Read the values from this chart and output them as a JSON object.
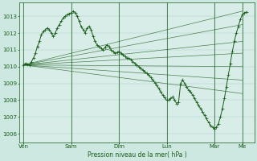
{
  "xlabel": "Pression niveau de la mer( hPa )",
  "bg_color": "#cce8e0",
  "grid_color": "#aacfc8",
  "line_color": "#1a5c1a",
  "plot_bg": "#d8ede8",
  "ylim": [
    1005.5,
    1013.8
  ],
  "yticks": [
    1006,
    1007,
    1008,
    1009,
    1010,
    1011,
    1012,
    1013
  ],
  "x_day_labels": [
    "Ven",
    "Sam",
    "Dim",
    "Lun",
    "Mar",
    "Me"
  ],
  "x_day_positions": [
    0,
    24,
    48,
    72,
    96,
    110
  ],
  "xlim": [
    -2,
    116
  ],
  "series": [
    {
      "points": [
        [
          0,
          1010.1
        ],
        [
          110,
          1013.3
        ]
      ]
    },
    {
      "points": [
        [
          0,
          1010.1
        ],
        [
          110,
          1012.5
        ]
      ]
    },
    {
      "points": [
        [
          0,
          1010.1
        ],
        [
          110,
          1011.5
        ]
      ]
    },
    {
      "points": [
        [
          0,
          1010.1
        ],
        [
          110,
          1010.8
        ]
      ]
    },
    {
      "points": [
        [
          0,
          1010.1
        ],
        [
          110,
          1010.0
        ]
      ]
    },
    {
      "points": [
        [
          0,
          1010.1
        ],
        [
          110,
          1009.2
        ]
      ]
    },
    {
      "points": [
        [
          0,
          1010.1
        ],
        [
          110,
          1008.4
        ]
      ]
    }
  ],
  "main_curve": [
    [
      0,
      1010.1
    ],
    [
      1,
      1010.2
    ],
    [
      2,
      1010.15
    ],
    [
      3,
      1010.1
    ],
    [
      4,
      1010.3
    ],
    [
      5,
      1010.5
    ],
    [
      6,
      1010.8
    ],
    [
      7,
      1011.2
    ],
    [
      8,
      1011.5
    ],
    [
      9,
      1011.9
    ],
    [
      10,
      1012.1
    ],
    [
      11,
      1012.2
    ],
    [
      12,
      1012.3
    ],
    [
      13,
      1012.2
    ],
    [
      14,
      1012.0
    ],
    [
      15,
      1011.8
    ],
    [
      16,
      1012.0
    ],
    [
      17,
      1012.3
    ],
    [
      18,
      1012.5
    ],
    [
      19,
      1012.7
    ],
    [
      20,
      1012.9
    ],
    [
      21,
      1013.0
    ],
    [
      22,
      1013.1
    ],
    [
      23,
      1013.15
    ],
    [
      24,
      1013.2
    ],
    [
      25,
      1013.3
    ],
    [
      26,
      1013.2
    ],
    [
      27,
      1013.0
    ],
    [
      28,
      1012.7
    ],
    [
      29,
      1012.4
    ],
    [
      30,
      1012.2
    ],
    [
      31,
      1012.0
    ],
    [
      32,
      1012.3
    ],
    [
      33,
      1012.4
    ],
    [
      34,
      1012.2
    ],
    [
      35,
      1011.8
    ],
    [
      36,
      1011.5
    ],
    [
      37,
      1011.3
    ],
    [
      38,
      1011.2
    ],
    [
      39,
      1011.1
    ],
    [
      40,
      1011.0
    ],
    [
      41,
      1011.15
    ],
    [
      42,
      1011.3
    ],
    [
      43,
      1011.2
    ],
    [
      44,
      1011.0
    ],
    [
      45,
      1010.9
    ],
    [
      46,
      1010.8
    ],
    [
      47,
      1010.85
    ],
    [
      48,
      1010.9
    ],
    [
      49,
      1010.8
    ],
    [
      50,
      1010.7
    ],
    [
      51,
      1010.6
    ],
    [
      52,
      1010.5
    ],
    [
      53,
      1010.5
    ],
    [
      54,
      1010.4
    ],
    [
      55,
      1010.3
    ],
    [
      56,
      1010.2
    ],
    [
      57,
      1010.1
    ],
    [
      58,
      1010.0
    ],
    [
      59,
      1009.9
    ],
    [
      60,
      1009.8
    ],
    [
      61,
      1009.7
    ],
    [
      62,
      1009.6
    ],
    [
      63,
      1009.5
    ],
    [
      64,
      1009.35
    ],
    [
      65,
      1009.2
    ],
    [
      66,
      1009.05
    ],
    [
      67,
      1008.9
    ],
    [
      68,
      1008.7
    ],
    [
      69,
      1008.5
    ],
    [
      70,
      1008.3
    ],
    [
      71,
      1008.15
    ],
    [
      72,
      1008.0
    ],
    [
      73,
      1008.0
    ],
    [
      74,
      1008.1
    ],
    [
      75,
      1008.2
    ],
    [
      76,
      1008.0
    ],
    [
      77,
      1007.8
    ],
    [
      78,
      1007.9
    ],
    [
      79,
      1009.0
    ],
    [
      80,
      1009.2
    ],
    [
      81,
      1009.0
    ],
    [
      82,
      1008.8
    ],
    [
      83,
      1008.6
    ],
    [
      84,
      1008.5
    ],
    [
      85,
      1008.3
    ],
    [
      86,
      1008.1
    ],
    [
      87,
      1007.9
    ],
    [
      88,
      1007.7
    ],
    [
      89,
      1007.5
    ],
    [
      90,
      1007.3
    ],
    [
      91,
      1007.1
    ],
    [
      92,
      1006.9
    ],
    [
      93,
      1006.7
    ],
    [
      94,
      1006.5
    ],
    [
      95,
      1006.4
    ],
    [
      96,
      1006.3
    ],
    [
      97,
      1006.4
    ],
    [
      98,
      1006.6
    ],
    [
      99,
      1007.0
    ],
    [
      100,
      1007.5
    ],
    [
      101,
      1008.1
    ],
    [
      102,
      1008.8
    ],
    [
      103,
      1009.5
    ],
    [
      104,
      1010.2
    ],
    [
      105,
      1010.9
    ],
    [
      106,
      1011.5
    ],
    [
      107,
      1012.0
    ],
    [
      108,
      1012.4
    ],
    [
      109,
      1012.8
    ],
    [
      110,
      1013.1
    ],
    [
      111,
      1013.2
    ],
    [
      112,
      1013.25
    ]
  ]
}
